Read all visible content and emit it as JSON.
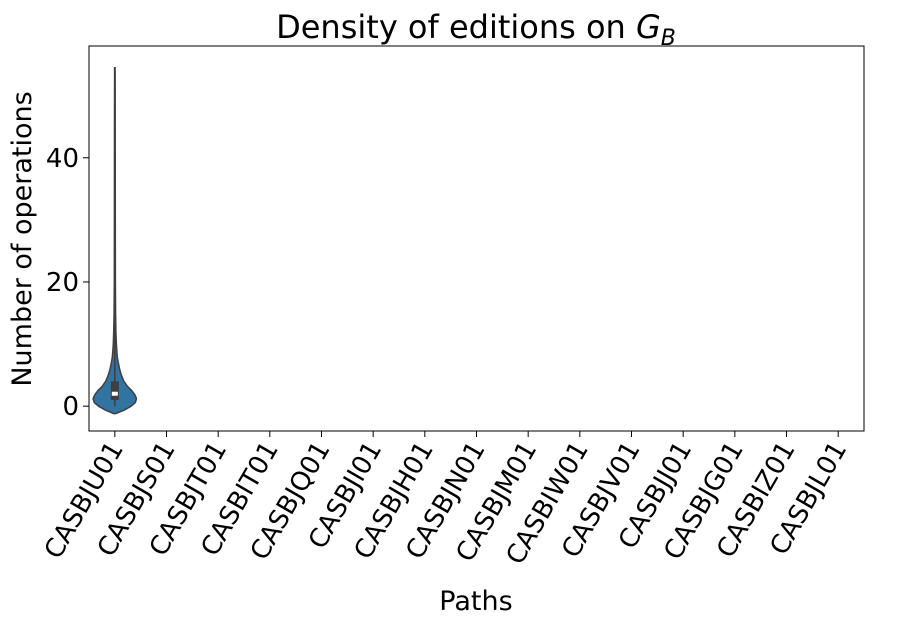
{
  "chart_data": {
    "type": "violin",
    "title_prefix": "Density of editions on ",
    "title_math_base": "G",
    "title_math_sub": "B",
    "xlabel": "Paths",
    "ylabel": "Number of operations",
    "ylim": [
      -4,
      58
    ],
    "yticks": [
      0,
      20,
      40
    ],
    "categories": [
      "CASBJU01",
      "CASBJS01",
      "CASBJT01",
      "CASBIT01",
      "CASBJQ01",
      "CASBJI01",
      "CASBJH01",
      "CASBJN01",
      "CASBJM01",
      "CASBIW01",
      "CASBJV01",
      "CASBJJ01",
      "CASBJG01",
      "CASBIZ01",
      "CASBJL01"
    ],
    "violins": [
      {
        "category": "CASBJU01",
        "color": "#3274a1",
        "min": 0,
        "q1": 1,
        "median": 2,
        "q3": 4,
        "max": 54,
        "density_profile": [
          [
            -1.2,
            0.05
          ],
          [
            -0.6,
            0.45
          ],
          [
            0.0,
            0.75
          ],
          [
            0.6,
            0.95
          ],
          [
            1.2,
            1.0
          ],
          [
            1.8,
            0.93
          ],
          [
            2.5,
            0.78
          ],
          [
            3.2,
            0.58
          ],
          [
            4.0,
            0.42
          ],
          [
            5.0,
            0.3
          ],
          [
            6.0,
            0.22
          ],
          [
            7.0,
            0.16
          ],
          [
            8.0,
            0.11
          ],
          [
            10.0,
            0.07
          ],
          [
            12.0,
            0.05
          ],
          [
            15.0,
            0.035
          ],
          [
            20.0,
            0.025
          ],
          [
            30.0,
            0.02
          ],
          [
            45.0,
            0.017
          ],
          [
            54.5,
            0.012
          ]
        ]
      }
    ]
  }
}
